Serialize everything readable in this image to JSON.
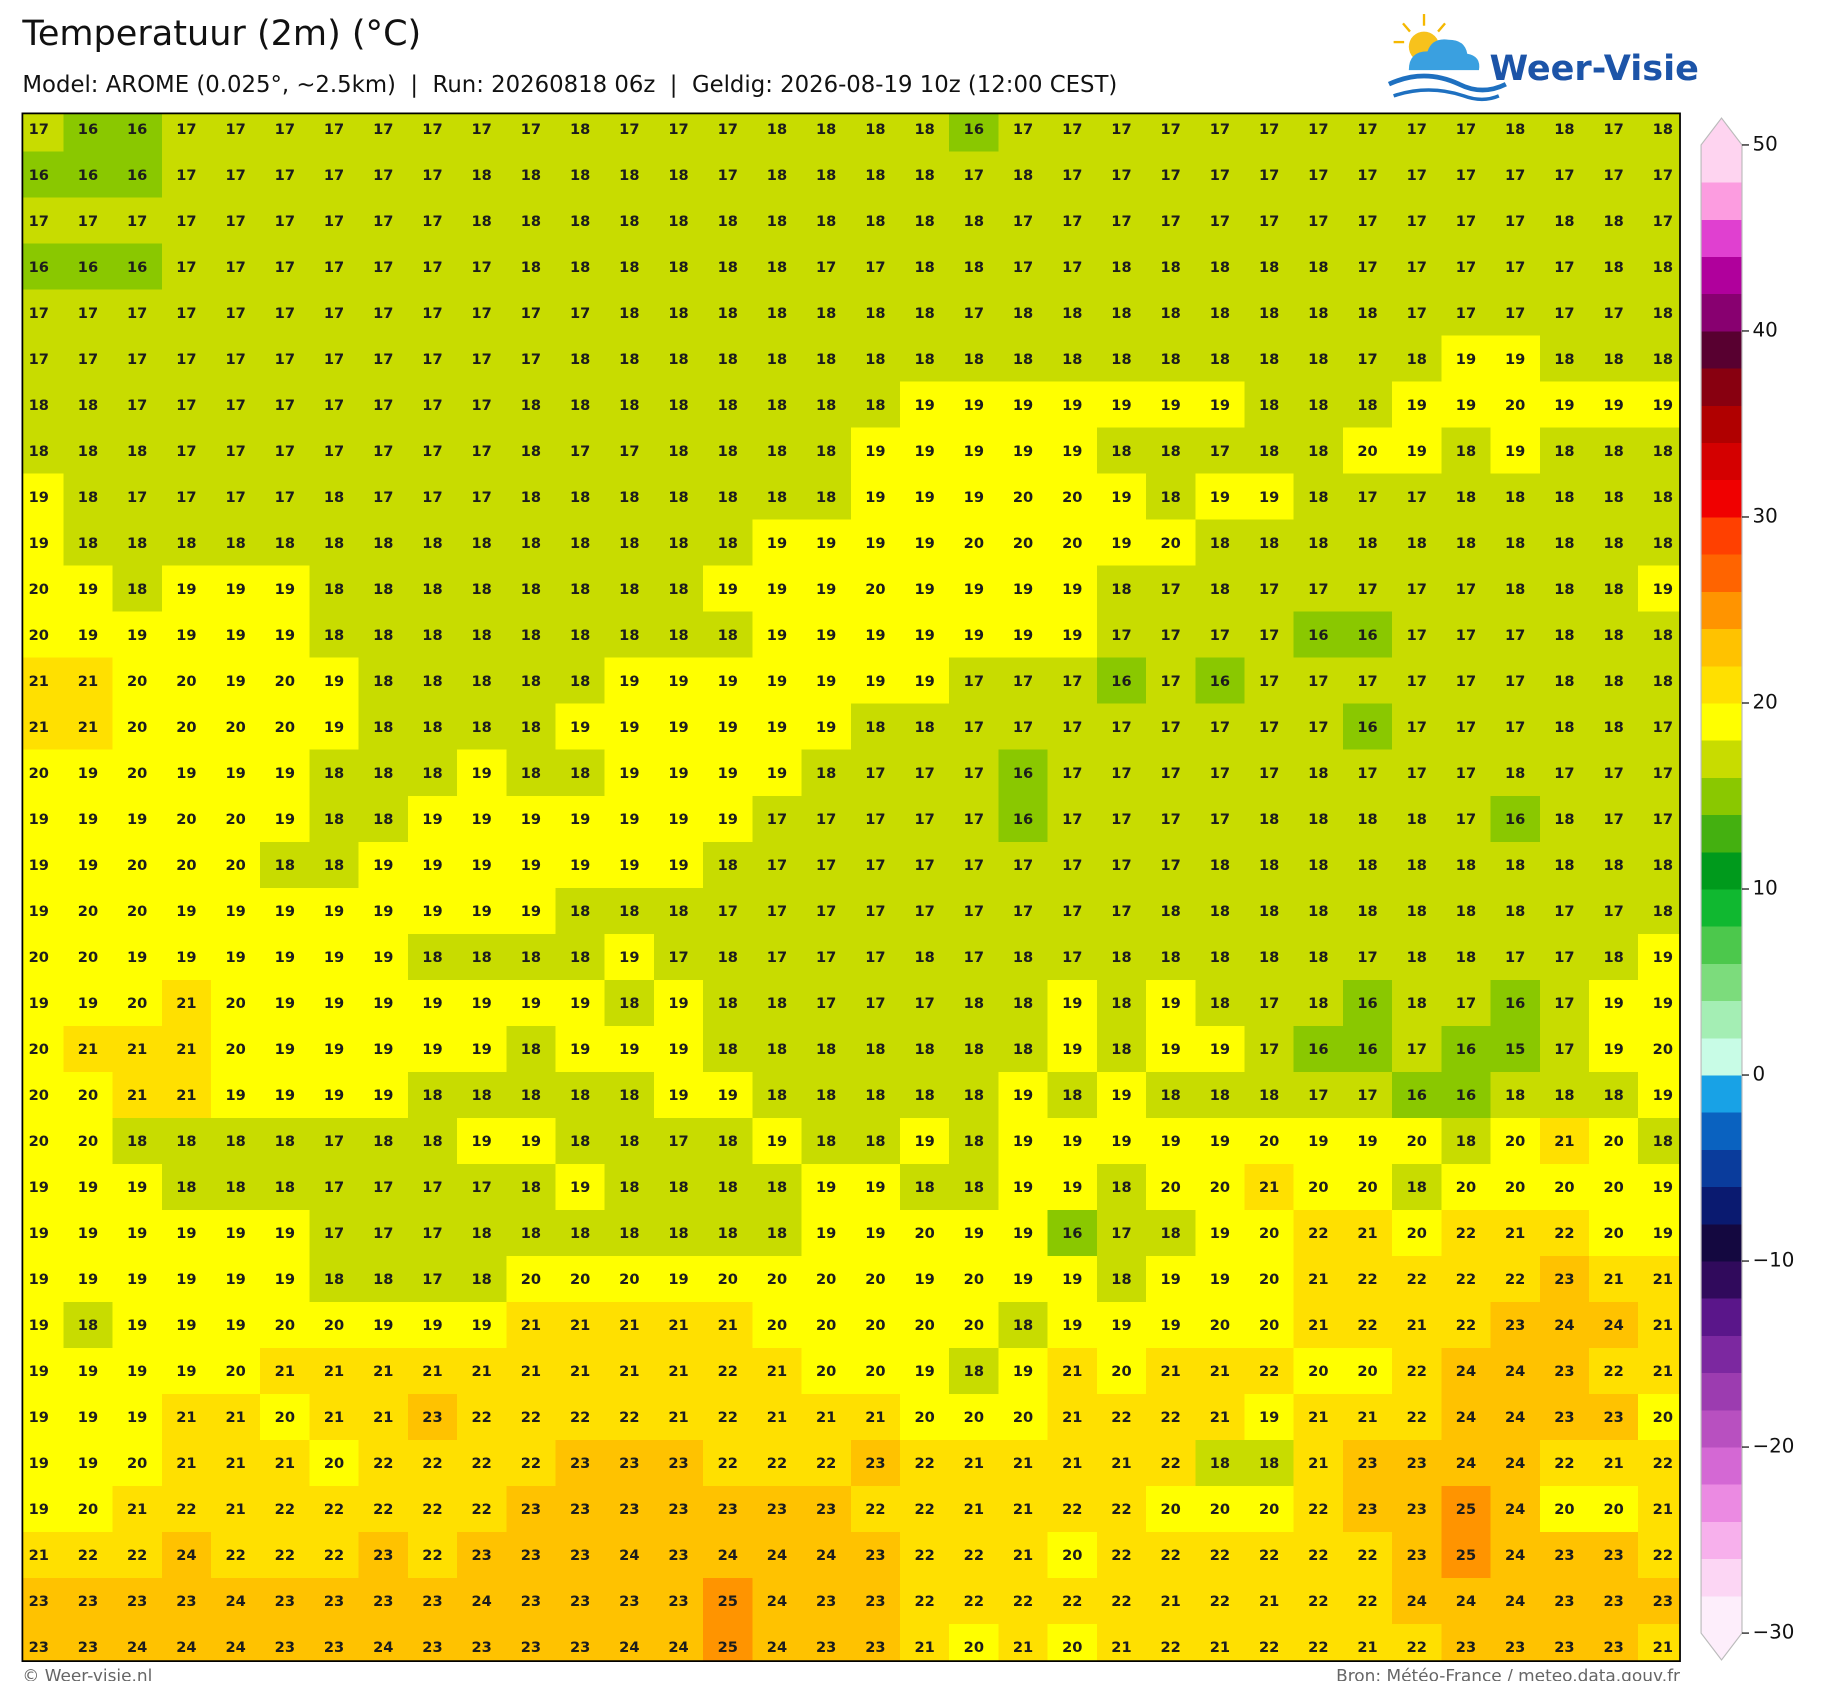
{
  "header": {
    "title": "Temperatuur (2m) (°C)",
    "subtitle": "Model: AROME (0.025°, ~2.5km)  |  Run: 20260818 06z  |  Geldig: 2026-08-19 10z (12:00 CEST)",
    "logo": "Weer-Visie"
  },
  "map": {
    "type": "grid",
    "values": [
      [
        17,
        16,
        16,
        17,
        17,
        17,
        17,
        17,
        17,
        17,
        17,
        18,
        17,
        17,
        17,
        18,
        18,
        18,
        18,
        16,
        17,
        17,
        17,
        17,
        17,
        17,
        17,
        17,
        17,
        17,
        18,
        18,
        17,
        18
      ],
      [
        16,
        16,
        16,
        17,
        17,
        17,
        17,
        17,
        17,
        18,
        18,
        18,
        18,
        18,
        17,
        18,
        18,
        18,
        18,
        17,
        18,
        17,
        17,
        17,
        17,
        17,
        17,
        17,
        17,
        17,
        17,
        17,
        17,
        17
      ],
      [
        17,
        17,
        17,
        17,
        17,
        17,
        17,
        17,
        17,
        18,
        18,
        18,
        18,
        18,
        18,
        18,
        18,
        18,
        18,
        18,
        17,
        17,
        17,
        17,
        17,
        17,
        17,
        17,
        17,
        17,
        17,
        18,
        18,
        17
      ],
      [
        16,
        16,
        16,
        17,
        17,
        17,
        17,
        17,
        17,
        17,
        18,
        18,
        18,
        18,
        18,
        18,
        17,
        17,
        18,
        18,
        17,
        17,
        18,
        18,
        18,
        18,
        18,
        17,
        17,
        17,
        17,
        17,
        18,
        18
      ],
      [
        17,
        17,
        17,
        17,
        17,
        17,
        17,
        17,
        17,
        17,
        17,
        17,
        18,
        18,
        18,
        18,
        18,
        18,
        18,
        17,
        18,
        18,
        18,
        18,
        18,
        18,
        18,
        18,
        17,
        17,
        17,
        17,
        17,
        18
      ],
      [
        17,
        17,
        17,
        17,
        17,
        17,
        17,
        17,
        17,
        17,
        17,
        18,
        18,
        18,
        18,
        18,
        18,
        18,
        18,
        18,
        18,
        18,
        18,
        18,
        18,
        18,
        18,
        17,
        18,
        19,
        19,
        18,
        18,
        18
      ],
      [
        18,
        18,
        17,
        17,
        17,
        17,
        17,
        17,
        17,
        17,
        18,
        18,
        18,
        18,
        18,
        18,
        18,
        18,
        19,
        19,
        19,
        19,
        19,
        19,
        19,
        18,
        18,
        18,
        19,
        19,
        20,
        19,
        19,
        19
      ],
      [
        18,
        18,
        18,
        17,
        17,
        17,
        17,
        17,
        17,
        17,
        18,
        17,
        17,
        18,
        18,
        18,
        18,
        19,
        19,
        19,
        19,
        19,
        18,
        18,
        17,
        18,
        18,
        20,
        19,
        18,
        19,
        18,
        18,
        18
      ],
      [
        19,
        18,
        17,
        17,
        17,
        17,
        18,
        17,
        17,
        17,
        18,
        18,
        18,
        18,
        18,
        18,
        18,
        19,
        19,
        19,
        20,
        20,
        19,
        18,
        19,
        19,
        18,
        17,
        17,
        18,
        18,
        18,
        18,
        18
      ],
      [
        19,
        18,
        18,
        18,
        18,
        18,
        18,
        18,
        18,
        18,
        18,
        18,
        18,
        18,
        18,
        19,
        19,
        19,
        19,
        20,
        20,
        20,
        19,
        20,
        18,
        18,
        18,
        18,
        18,
        18,
        18,
        18,
        18,
        18
      ],
      [
        20,
        19,
        18,
        19,
        19,
        19,
        18,
        18,
        18,
        18,
        18,
        18,
        18,
        18,
        19,
        19,
        19,
        20,
        19,
        19,
        19,
        19,
        18,
        17,
        18,
        17,
        17,
        17,
        17,
        17,
        18,
        18,
        18,
        19
      ],
      [
        20,
        19,
        19,
        19,
        19,
        19,
        18,
        18,
        18,
        18,
        18,
        18,
        18,
        18,
        18,
        19,
        19,
        19,
        19,
        19,
        19,
        19,
        17,
        17,
        17,
        17,
        16,
        16,
        17,
        17,
        17,
        18,
        18,
        18
      ],
      [
        21,
        21,
        20,
        20,
        19,
        20,
        19,
        18,
        18,
        18,
        18,
        18,
        19,
        19,
        19,
        19,
        19,
        19,
        19,
        17,
        17,
        17,
        16,
        17,
        16,
        17,
        17,
        17,
        17,
        17,
        17,
        18,
        18,
        18
      ],
      [
        21,
        21,
        20,
        20,
        20,
        20,
        19,
        18,
        18,
        18,
        18,
        19,
        19,
        19,
        19,
        19,
        19,
        18,
        18,
        17,
        17,
        17,
        17,
        17,
        17,
        17,
        17,
        16,
        17,
        17,
        17,
        18,
        18,
        17
      ],
      [
        20,
        19,
        20,
        19,
        19,
        19,
        18,
        18,
        18,
        19,
        18,
        18,
        19,
        19,
        19,
        19,
        18,
        17,
        17,
        17,
        16,
        17,
        17,
        17,
        17,
        17,
        18,
        17,
        17,
        17,
        18,
        17,
        17,
        17
      ],
      [
        19,
        19,
        19,
        20,
        20,
        19,
        18,
        18,
        19,
        19,
        19,
        19,
        19,
        19,
        19,
        17,
        17,
        17,
        17,
        17,
        16,
        17,
        17,
        17,
        17,
        18,
        18,
        18,
        18,
        17,
        16,
        18,
        17,
        17
      ],
      [
        19,
        19,
        20,
        20,
        20,
        18,
        18,
        19,
        19,
        19,
        19,
        19,
        19,
        19,
        18,
        17,
        17,
        17,
        17,
        17,
        17,
        17,
        17,
        17,
        18,
        18,
        18,
        18,
        18,
        18,
        18,
        18,
        18,
        18
      ],
      [
        19,
        20,
        20,
        19,
        19,
        19,
        19,
        19,
        19,
        19,
        19,
        18,
        18,
        18,
        17,
        17,
        17,
        17,
        17,
        17,
        17,
        17,
        17,
        18,
        18,
        18,
        18,
        18,
        18,
        18,
        18,
        17,
        17,
        18
      ],
      [
        20,
        20,
        19,
        19,
        19,
        19,
        19,
        19,
        18,
        18,
        18,
        18,
        19,
        17,
        18,
        17,
        17,
        17,
        18,
        17,
        18,
        17,
        18,
        18,
        18,
        18,
        18,
        17,
        18,
        18,
        17,
        17,
        18,
        19
      ],
      [
        19,
        19,
        20,
        21,
        20,
        19,
        19,
        19,
        19,
        19,
        19,
        19,
        18,
        19,
        18,
        18,
        17,
        17,
        17,
        18,
        18,
        19,
        18,
        19,
        18,
        17,
        18,
        16,
        18,
        17,
        16,
        17,
        19,
        19
      ],
      [
        20,
        21,
        21,
        21,
        20,
        19,
        19,
        19,
        19,
        19,
        18,
        19,
        19,
        19,
        18,
        18,
        18,
        18,
        18,
        18,
        18,
        19,
        18,
        19,
        19,
        17,
        16,
        16,
        17,
        16,
        15,
        17,
        19,
        20
      ],
      [
        20,
        20,
        21,
        21,
        19,
        19,
        19,
        19,
        18,
        18,
        18,
        18,
        18,
        19,
        19,
        18,
        18,
        18,
        18,
        18,
        19,
        18,
        19,
        18,
        18,
        18,
        17,
        17,
        16,
        16,
        18,
        18,
        18,
        19
      ],
      [
        20,
        20,
        18,
        18,
        18,
        18,
        17,
        18,
        18,
        19,
        19,
        18,
        18,
        17,
        18,
        19,
        18,
        18,
        19,
        18,
        19,
        19,
        19,
        19,
        19,
        20,
        19,
        19,
        20,
        18,
        20,
        21,
        20,
        18
      ],
      [
        19,
        19,
        19,
        18,
        18,
        18,
        17,
        17,
        17,
        17,
        18,
        19,
        18,
        18,
        18,
        18,
        19,
        19,
        18,
        18,
        19,
        19,
        18,
        20,
        20,
        21,
        20,
        20,
        18,
        20,
        20,
        20,
        20,
        19
      ],
      [
        19,
        19,
        19,
        19,
        19,
        19,
        17,
        17,
        17,
        18,
        18,
        18,
        18,
        18,
        18,
        18,
        19,
        19,
        20,
        19,
        19,
        16,
        17,
        18,
        19,
        20,
        22,
        21,
        20,
        22,
        21,
        22,
        20,
        19
      ],
      [
        19,
        19,
        19,
        19,
        19,
        19,
        18,
        18,
        17,
        18,
        20,
        20,
        20,
        19,
        20,
        20,
        20,
        20,
        19,
        20,
        19,
        19,
        18,
        19,
        19,
        20,
        21,
        22,
        22,
        22,
        22,
        23,
        21,
        21
      ],
      [
        19,
        18,
        19,
        19,
        19,
        20,
        20,
        19,
        19,
        19,
        21,
        21,
        21,
        21,
        21,
        20,
        20,
        20,
        20,
        20,
        18,
        19,
        19,
        19,
        20,
        20,
        21,
        22,
        21,
        22,
        23,
        24,
        24,
        21
      ],
      [
        19,
        19,
        19,
        19,
        20,
        21,
        21,
        21,
        21,
        21,
        21,
        21,
        21,
        21,
        22,
        21,
        20,
        20,
        19,
        18,
        19,
        21,
        20,
        21,
        21,
        22,
        20,
        20,
        22,
        24,
        24,
        23,
        22,
        21
      ],
      [
        19,
        19,
        19,
        21,
        21,
        20,
        21,
        21,
        23,
        22,
        22,
        22,
        22,
        21,
        22,
        21,
        21,
        21,
        20,
        20,
        20,
        21,
        22,
        22,
        21,
        19,
        21,
        21,
        22,
        24,
        24,
        23,
        23,
        20
      ],
      [
        19,
        19,
        20,
        21,
        21,
        21,
        20,
        22,
        22,
        22,
        22,
        23,
        23,
        23,
        22,
        22,
        22,
        23,
        22,
        21,
        21,
        21,
        21,
        22,
        18,
        18,
        21,
        23,
        23,
        24,
        24,
        22,
        21,
        22
      ],
      [
        19,
        20,
        21,
        22,
        21,
        22,
        22,
        22,
        22,
        22,
        23,
        23,
        23,
        23,
        23,
        23,
        23,
        22,
        22,
        21,
        21,
        22,
        22,
        20,
        20,
        20,
        22,
        23,
        23,
        25,
        24,
        20,
        20,
        21
      ],
      [
        21,
        22,
        22,
        24,
        22,
        22,
        22,
        23,
        22,
        23,
        23,
        23,
        24,
        23,
        24,
        24,
        24,
        23,
        22,
        22,
        21,
        20,
        22,
        22,
        22,
        22,
        22,
        22,
        23,
        25,
        24,
        23,
        23,
        22
      ],
      [
        23,
        23,
        23,
        23,
        24,
        23,
        23,
        23,
        23,
        24,
        23,
        23,
        23,
        23,
        25,
        24,
        23,
        23,
        22,
        22,
        22,
        22,
        22,
        21,
        22,
        21,
        22,
        22,
        24,
        24,
        24,
        23,
        23,
        23
      ],
      [
        23,
        23,
        24,
        24,
        24,
        23,
        23,
        24,
        23,
        23,
        23,
        23,
        24,
        24,
        25,
        24,
        23,
        23,
        21,
        20,
        21,
        20,
        21,
        22,
        21,
        22,
        22,
        21,
        22,
        23,
        23,
        23,
        23,
        21
      ]
    ],
    "colorbar": {
      "range": [
        -30,
        50
      ],
      "ticks": [
        50,
        40,
        30,
        20,
        10,
        0,
        {
          "value": -10,
          "label": "−10"
        },
        {
          "value": -20,
          "label": "−20"
        },
        {
          "value": -30,
          "label": "−30"
        }
      ],
      "colors": [
        "#fdeefb",
        "#fcd6f4",
        "#f7b0ec",
        "#eb8ae2",
        "#d468d4",
        "#b850c0",
        "#9c3cb0",
        "#7c28a0",
        "#5a168a",
        "#300a5c",
        "#140840",
        "#0a1a70",
        "#0a3c9c",
        "#0a62c0",
        "#18a2e6",
        "#c8fce6",
        "#a4eeb4",
        "#7cdc7c",
        "#4cc84c",
        "#10b830",
        "#009a1c",
        "#44b010",
        "#8ac800",
        "#c8dc00",
        "#ffff00",
        "#ffe000",
        "#ffc200",
        "#ff9400",
        "#ff6400",
        "#ff4000",
        "#f00000",
        "#d40000",
        "#b00000",
        "#880010",
        "#580030",
        "#880070",
        "#b0009c",
        "#e040d0",
        "#fc9ce0",
        "#fed4f0"
      ]
    }
  },
  "footer": {
    "left": "© Weer-visie.nl",
    "right": "Bron: Météo-France / meteo.data.gouv.fr"
  }
}
